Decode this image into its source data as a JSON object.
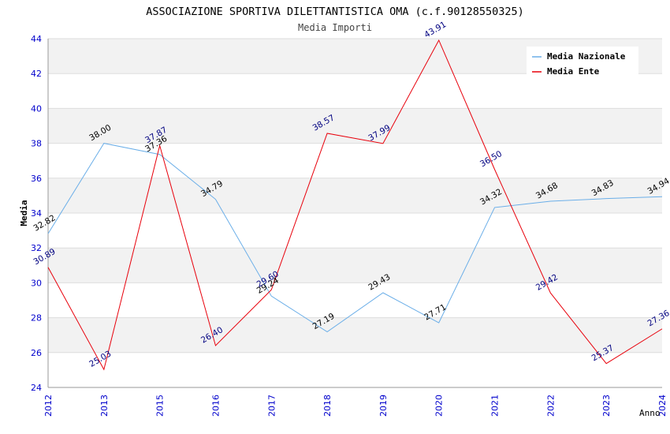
{
  "chart_data": {
    "type": "line",
    "title": "ASSOCIAZIONE SPORTIVA DILETTANTISTICA OMA (c.f.90128550325)",
    "subtitle": "Media Importi",
    "xlabel": "Anno",
    "ylabel": "Media",
    "categories": [
      "2012",
      "2013",
      "2015",
      "2016",
      "2017",
      "2018",
      "2019",
      "2020",
      "2021",
      "2022",
      "2023",
      "2024"
    ],
    "ylim": [
      24,
      44
    ],
    "yticks": [
      24,
      26,
      28,
      30,
      32,
      34,
      36,
      38,
      40,
      42,
      44
    ],
    "grid": true,
    "legend_position": "top-right",
    "series": [
      {
        "name": "Media Nazionale",
        "color": "#6aaee8",
        "label_color": "#000000",
        "values": [
          32.82,
          38.0,
          37.36,
          34.79,
          29.24,
          27.19,
          29.43,
          27.71,
          34.32,
          34.68,
          34.83,
          34.94
        ],
        "labels": [
          "32.82",
          "38.00",
          "37.36",
          "34.79",
          "29.24",
          "27.19",
          "29.43",
          "27.71",
          "34.32",
          "34.68",
          "34.83",
          "34.94"
        ]
      },
      {
        "name": "Media Ente",
        "color": "#e8000b",
        "label_color": "#000080",
        "values": [
          30.89,
          25.03,
          37.87,
          26.4,
          29.6,
          38.57,
          37.99,
          43.91,
          36.5,
          29.42,
          25.37,
          27.36
        ],
        "labels": [
          "30.89",
          "25.03",
          "37.87",
          "26.40",
          "29.60",
          "38.57",
          "37.99",
          "43.91",
          "36.50",
          "29.42",
          "25.37",
          "27.36"
        ]
      }
    ],
    "colors": {
      "tick_label": "#0000cc",
      "band": "#f2f2f2",
      "grid": "#dddddd"
    }
  }
}
